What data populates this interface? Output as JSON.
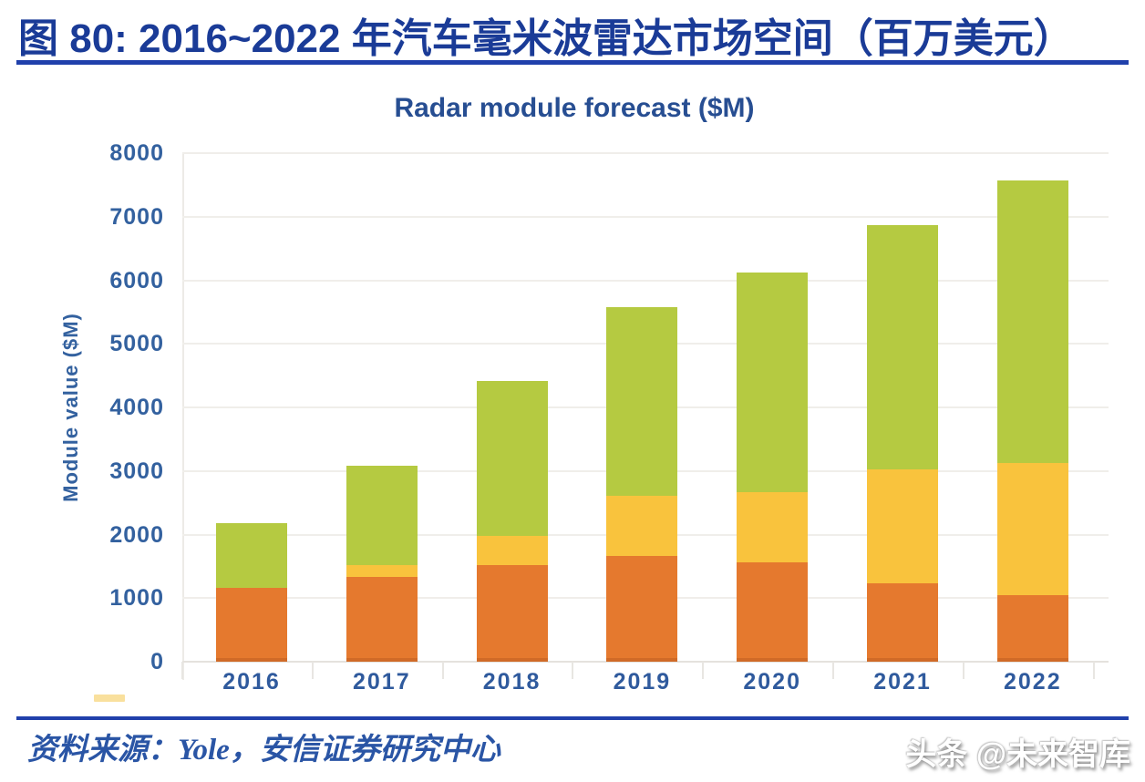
{
  "header": {
    "title": "图 80: 2016~2022 年汽车毫米波雷达市场空间（百万美元）"
  },
  "chart_data": {
    "type": "bar",
    "stacked": true,
    "title": "Radar module forecast ($M)",
    "ylabel": "Module value ($M)",
    "xlabel": "",
    "categories": [
      "2016",
      "2017",
      "2018",
      "2019",
      "2020",
      "2021",
      "2022"
    ],
    "series": [
      {
        "name": "bottom-segment-orange",
        "color": "#E5792E",
        "values": [
          1160,
          1340,
          1520,
          1660,
          1560,
          1230,
          1050
        ]
      },
      {
        "name": "middle-segment-yellow",
        "color": "#F9C33D",
        "values": [
          0,
          180,
          460,
          950,
          1100,
          1800,
          2080
        ]
      },
      {
        "name": "top-segment-green",
        "color": "#B5CA41",
        "values": [
          1020,
          1560,
          2440,
          2970,
          3460,
          3840,
          4440
        ]
      }
    ],
    "totals": [
      2180,
      3080,
      4420,
      5580,
      6120,
      6870,
      7570
    ],
    "ylim": [
      0,
      8000
    ],
    "yticks": [
      0,
      1000,
      2000,
      3000,
      4000,
      5000,
      6000,
      7000,
      8000
    ],
    "grid": "horizontal",
    "legend_position": "none"
  },
  "footer": {
    "source": "资料来源：Yole，安信证券研究中心",
    "watermark": "头条 @未来智库"
  },
  "colors": {
    "header_blue": "#1A3B97",
    "rule_blue": "#2040AB",
    "chart_title_blue": "#274E92",
    "axis_text_blue": "#33619F",
    "bar_orange": "#E5792E",
    "bar_yellow": "#F9C33D",
    "bar_green": "#B5CA41",
    "gridline_gray": "#F0EEEA"
  }
}
